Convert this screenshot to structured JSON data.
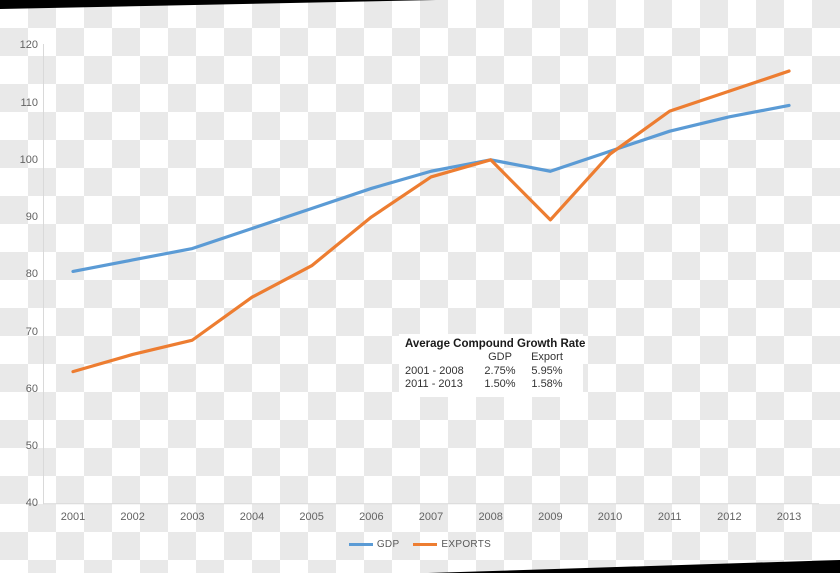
{
  "chart_data": {
    "type": "line",
    "categories": [
      "2001",
      "2002",
      "2003",
      "2004",
      "2005",
      "2006",
      "2007",
      "2008",
      "2009",
      "2010",
      "2011",
      "2012",
      "2013"
    ],
    "series": [
      {
        "name": "GDP",
        "color": "#5B9BD5",
        "values": [
          80.5,
          82.5,
          84.5,
          88,
          91.5,
          95,
          98,
          100,
          98,
          101.5,
          105,
          107.5,
          109.5
        ]
      },
      {
        "name": "EXPORTS",
        "color": "#ED7D31",
        "values": [
          63,
          66,
          68.5,
          76,
          81.5,
          90,
          97,
          100,
          89.5,
          101,
          108.5,
          112,
          115.5
        ]
      }
    ],
    "title": "",
    "xlabel": "",
    "ylabel": "",
    "ylim": [
      40,
      120
    ],
    "yticks": [
      120,
      110,
      100,
      90,
      80,
      70,
      60,
      50,
      40
    ],
    "grid": false,
    "legend_position": "bottom-center",
    "axis_line_color": "#d9d9d9",
    "tick_label_color": "#636363",
    "transparency_checker_color": "#e9e9e9"
  },
  "annotation": {
    "title": "Average Compound Growth Rate",
    "columns": [
      "GDP",
      "Export"
    ],
    "rows": [
      {
        "period": "2001 - 2008",
        "gdp": "2.75%",
        "export": "5.95%"
      },
      {
        "period": "2011 - 2013",
        "gdp": "1.50%",
        "export": "1.58%"
      }
    ]
  }
}
